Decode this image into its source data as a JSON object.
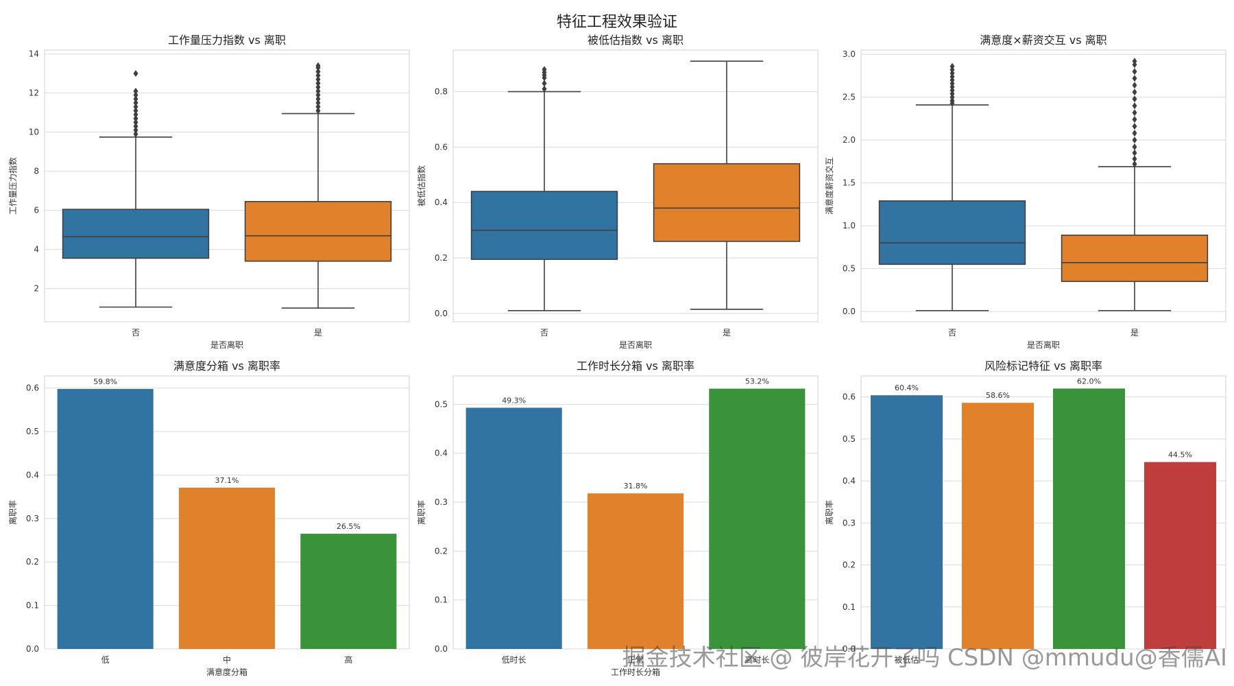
{
  "figure": {
    "suptitle": "特征工程效果验证",
    "watermark": "掘金技术社区 @ 彼岸花开了吗  CSDN @mmudu@香儒AI"
  },
  "chart_data": [
    {
      "type": "box",
      "title": "工作量压力指数 vs 离职",
      "xlabel": "是否离职",
      "ylabel": "工作量压力指数",
      "categories": [
        "否",
        "是"
      ],
      "ylim": [
        0.3,
        14.2
      ],
      "yticks": [
        2,
        4,
        6,
        8,
        10,
        12,
        14
      ],
      "colors": [
        "#3274a1",
        "#e1812c"
      ],
      "boxes": [
        {
          "name": "否",
          "whislo": 1.05,
          "q1": 3.55,
          "med": 4.65,
          "q3": 6.05,
          "whishi": 9.75,
          "fliers": [
            9.9,
            10.1,
            10.3,
            10.5,
            10.7,
            10.9,
            11.1,
            11.3,
            11.5,
            11.7,
            11.9,
            12.1,
            13.0
          ]
        },
        {
          "name": "是",
          "whislo": 1.0,
          "q1": 3.4,
          "med": 4.7,
          "q3": 6.45,
          "whishi": 10.95,
          "fliers": [
            11.1,
            11.3,
            11.5,
            11.7,
            11.9,
            12.1,
            12.3,
            12.5,
            12.7,
            12.9,
            13.1,
            13.3,
            13.4
          ]
        }
      ]
    },
    {
      "type": "box",
      "title": "被低估指数 vs 离职",
      "xlabel": "是否离职",
      "ylabel": "被低估指数",
      "categories": [
        "否",
        "是"
      ],
      "ylim": [
        -0.03,
        0.95
      ],
      "yticks": [
        0.0,
        0.2,
        0.4,
        0.6,
        0.8
      ],
      "colors": [
        "#3274a1",
        "#e1812c"
      ],
      "boxes": [
        {
          "name": "否",
          "whislo": 0.01,
          "q1": 0.195,
          "med": 0.3,
          "q3": 0.44,
          "whishi": 0.8,
          "fliers": [
            0.81,
            0.83,
            0.85,
            0.86,
            0.87,
            0.88
          ]
        },
        {
          "name": "是",
          "whislo": 0.015,
          "q1": 0.26,
          "med": 0.38,
          "q3": 0.54,
          "whishi": 0.91,
          "fliers": []
        }
      ]
    },
    {
      "type": "box",
      "title": "满意度×薪资交互 vs 离职",
      "xlabel": "是否离职",
      "ylabel": "满意度薪资交互",
      "categories": [
        "否",
        "是"
      ],
      "ylim": [
        -0.12,
        3.05
      ],
      "yticks": [
        0.0,
        0.5,
        1.0,
        1.5,
        2.0,
        2.5,
        3.0
      ],
      "colors": [
        "#3274a1",
        "#e1812c"
      ],
      "boxes": [
        {
          "name": "否",
          "whislo": 0.01,
          "q1": 0.55,
          "med": 0.8,
          "q3": 1.29,
          "whishi": 2.41,
          "fliers": [
            2.43,
            2.46,
            2.5,
            2.54,
            2.58,
            2.62,
            2.66,
            2.7,
            2.74,
            2.78,
            2.82,
            2.86
          ]
        },
        {
          "name": "是",
          "whislo": 0.01,
          "q1": 0.35,
          "med": 0.57,
          "q3": 0.89,
          "whishi": 1.69,
          "fliers": [
            1.72,
            1.78,
            1.85,
            1.92,
            2.0,
            2.08,
            2.16,
            2.24,
            2.32,
            2.4,
            2.48,
            2.56,
            2.64,
            2.72,
            2.8,
            2.88,
            2.92
          ]
        }
      ]
    },
    {
      "type": "bar",
      "title": "满意度分箱 vs 离职率",
      "xlabel": "满意度分箱",
      "ylabel": "离职率",
      "categories": [
        "低",
        "中",
        "高"
      ],
      "values": [
        0.598,
        0.371,
        0.265
      ],
      "labels": [
        "59.8%",
        "37.1%",
        "26.5%"
      ],
      "ylim": [
        0,
        0.628
      ],
      "yticks": [
        0.0,
        0.1,
        0.2,
        0.3,
        0.4,
        0.5,
        0.6
      ],
      "colors": [
        "#3274a1",
        "#e1812c",
        "#3a923a"
      ]
    },
    {
      "type": "bar",
      "title": "工作时长分箱 vs 离职率",
      "xlabel": "工作时长分箱",
      "ylabel": "离职率",
      "categories": [
        "低时长",
        "正常",
        "高时长"
      ],
      "values": [
        0.493,
        0.318,
        0.532
      ],
      "labels": [
        "49.3%",
        "31.8%",
        "53.2%"
      ],
      "ylim": [
        0,
        0.558
      ],
      "yticks": [
        0.0,
        0.1,
        0.2,
        0.3,
        0.4,
        0.5
      ],
      "colors": [
        "#3274a1",
        "#e1812c",
        "#3a923a"
      ]
    },
    {
      "type": "bar",
      "title": "风险标记特征 vs 离职率",
      "xlabel": "",
      "ylabel": "离职率",
      "categories": [
        "被低估",
        "",
        "",
        ""
      ],
      "values": [
        0.604,
        0.586,
        0.62,
        0.445
      ],
      "labels": [
        "60.4%",
        "58.6%",
        "62.0%",
        "44.5%"
      ],
      "ylim": [
        0,
        0.65
      ],
      "yticks": [
        0.0,
        0.1,
        0.2,
        0.3,
        0.4,
        0.5,
        0.6
      ],
      "colors": [
        "#3274a1",
        "#e1812c",
        "#3a923a",
        "#c03d3e"
      ]
    }
  ]
}
